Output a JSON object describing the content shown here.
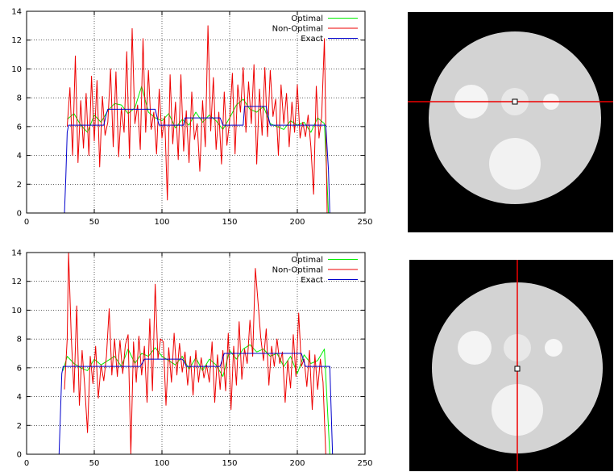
{
  "chart_data": [
    {
      "type": "line",
      "title": "",
      "xlabel": "",
      "ylabel": "",
      "xlim": [
        0,
        250
      ],
      "ylim": [
        0,
        14
      ],
      "x_ticks": [
        0,
        50,
        100,
        150,
        200,
        250
      ],
      "y_ticks": [
        0,
        2,
        4,
        6,
        8,
        10,
        12,
        14
      ],
      "grid": true,
      "legend": "top-right",
      "series": [
        {
          "name": "Optimal",
          "color": "#00ee00",
          "x": [
            30,
            35,
            40,
            45,
            50,
            55,
            60,
            65,
            70,
            75,
            80,
            85,
            90,
            95,
            100,
            105,
            110,
            115,
            120,
            125,
            130,
            135,
            140,
            145,
            150,
            155,
            160,
            165,
            170,
            175,
            180,
            185,
            190,
            195,
            200,
            205,
            210,
            215,
            220,
            223
          ],
          "y": [
            6.5,
            6.9,
            6.1,
            5.6,
            6.8,
            6.3,
            7.1,
            7.6,
            7.5,
            6.9,
            7.3,
            8.8,
            7.0,
            6.6,
            6.4,
            6.9,
            5.9,
            6.5,
            6.1,
            7.0,
            6.3,
            6.8,
            6.4,
            5.8,
            6.6,
            7.5,
            7.9,
            7.2,
            7.0,
            7.4,
            6.2,
            6.0,
            5.8,
            6.4,
            6.1,
            6.3,
            5.6,
            6.6,
            6.2,
            0
          ]
        },
        {
          "name": "Non-Optimal",
          "color": "#ee0000",
          "x": [
            30,
            32,
            34,
            36,
            38,
            40,
            42,
            44,
            46,
            48,
            50,
            52,
            54,
            56,
            58,
            60,
            62,
            64,
            66,
            68,
            70,
            72,
            74,
            76,
            78,
            80,
            82,
            84,
            86,
            88,
            90,
            92,
            94,
            96,
            98,
            100,
            102,
            104,
            106,
            108,
            110,
            112,
            114,
            116,
            118,
            120,
            122,
            124,
            126,
            128,
            130,
            132,
            134,
            136,
            138,
            140,
            142,
            144,
            146,
            148,
            150,
            152,
            154,
            156,
            158,
            160,
            162,
            164,
            166,
            168,
            170,
            172,
            174,
            176,
            178,
            180,
            182,
            184,
            186,
            188,
            190,
            192,
            194,
            196,
            198,
            200,
            202,
            204,
            206,
            208,
            210,
            212,
            214,
            216,
            218,
            220,
            222,
            224
          ],
          "y": [
            6.0,
            8.7,
            4.0,
            10.9,
            3.5,
            7.8,
            4.5,
            8.3,
            4.0,
            9.5,
            5.0,
            9.2,
            3.2,
            8.1,
            5.4,
            6.3,
            10.0,
            4.6,
            9.8,
            3.9,
            7.3,
            5.6,
            11.2,
            3.8,
            12.8,
            6.2,
            7.5,
            4.4,
            12.1,
            5.6,
            9.9,
            5.8,
            7.0,
            4.1,
            8.6,
            5.2,
            6.7,
            0.9,
            9.6,
            4.8,
            7.7,
            3.7,
            9.6,
            4.3,
            7.1,
            3.5,
            8.4,
            5.1,
            6.2,
            2.9,
            7.8,
            4.6,
            13.0,
            5.7,
            9.4,
            4.4,
            7.0,
            3.4,
            8.4,
            4.7,
            6.4,
            9.7,
            4.1,
            8.9,
            7.0,
            10.1,
            5.6,
            9.1,
            6.2,
            10.3,
            3.4,
            8.6,
            5.4,
            10.1,
            5.3,
            9.9,
            6.7,
            7.9,
            4.0,
            8.9,
            6.2,
            8.3,
            4.6,
            7.7,
            5.6,
            8.9,
            5.2,
            6.3,
            5.3,
            6.8,
            4.6,
            1.3,
            8.8,
            5.2,
            6.7,
            12.1,
            0,
            0
          ]
        },
        {
          "name": "Exact",
          "color": "#0000cc",
          "x": [
            28,
            29,
            30,
            31,
            57,
            59,
            60,
            95,
            97,
            98,
            116,
            117,
            143,
            145,
            160,
            161,
            177,
            179,
            180,
            221,
            223,
            224
          ],
          "y": [
            0,
            2.5,
            5.6,
            6.1,
            6.1,
            6.9,
            7.2,
            7.2,
            6.4,
            6.1,
            6.1,
            6.6,
            6.6,
            6.1,
            6.1,
            7.4,
            7.4,
            6.5,
            6.1,
            6.1,
            3.0,
            0
          ]
        }
      ]
    },
    {
      "type": "line",
      "title": "",
      "xlabel": "",
      "ylabel": "",
      "xlim": [
        0,
        250
      ],
      "ylim": [
        0,
        14
      ],
      "x_ticks": [
        0,
        50,
        100,
        150,
        200,
        250
      ],
      "y_ticks": [
        0,
        2,
        4,
        6,
        8,
        10,
        12,
        14
      ],
      "grid": true,
      "legend": "top-right",
      "series": [
        {
          "name": "Optimal",
          "color": "#00ee00",
          "x": [
            27,
            30,
            35,
            40,
            45,
            50,
            55,
            60,
            65,
            70,
            75,
            80,
            85,
            90,
            95,
            100,
            105,
            110,
            115,
            120,
            125,
            130,
            135,
            140,
            145,
            150,
            155,
            160,
            165,
            170,
            175,
            180,
            185,
            190,
            195,
            200,
            205,
            210,
            215,
            220,
            224
          ],
          "y": [
            5.8,
            6.8,
            6.3,
            6.0,
            5.8,
            6.6,
            6.2,
            6.5,
            6.8,
            6.1,
            7.3,
            6.3,
            7.0,
            6.8,
            7.4,
            6.8,
            6.5,
            6.2,
            6.8,
            5.9,
            6.7,
            5.8,
            6.6,
            6.2,
            5.4,
            7.2,
            6.6,
            7.3,
            7.6,
            7.1,
            7.3,
            6.8,
            7.0,
            6.1,
            6.8,
            5.6,
            6.9,
            6.3,
            6.5,
            7.3,
            0
          ]
        },
        {
          "name": "Non-Optimal",
          "color": "#ee0000",
          "x": [
            28,
            30,
            31,
            33,
            35,
            37,
            39,
            41,
            43,
            45,
            47,
            49,
            51,
            53,
            55,
            57,
            59,
            61,
            63,
            65,
            67,
            69,
            71,
            73,
            75,
            77,
            79,
            81,
            83,
            85,
            87,
            89,
            91,
            93,
            95,
            97,
            99,
            101,
            103,
            105,
            107,
            109,
            111,
            113,
            115,
            117,
            119,
            121,
            123,
            125,
            127,
            129,
            131,
            133,
            135,
            137,
            139,
            141,
            143,
            145,
            147,
            149,
            151,
            153,
            155,
            157,
            159,
            161,
            163,
            165,
            167,
            169,
            171,
            173,
            175,
            177,
            179,
            181,
            183,
            185,
            187,
            189,
            191,
            193,
            195,
            197,
            199,
            201,
            203,
            205,
            207,
            209,
            211,
            213,
            215,
            217,
            219,
            221,
            223,
            224
          ],
          "y": [
            4.5,
            8.0,
            14.0,
            8.2,
            4.3,
            10.3,
            3.4,
            7.2,
            4.7,
            1.5,
            6.8,
            4.9,
            7.5,
            3.9,
            6.2,
            5.1,
            6.8,
            10.1,
            5.5,
            8.0,
            5.4,
            7.9,
            5.6,
            7.6,
            8.3,
            0,
            7.8,
            5.0,
            8.2,
            5.5,
            7.5,
            3.6,
            9.4,
            4.4,
            11.8,
            6.6,
            8.0,
            7.8,
            3.4,
            7.4,
            5.0,
            8.4,
            5.5,
            7.7,
            5.7,
            7.1,
            4.8,
            6.8,
            4.1,
            7.2,
            5.0,
            6.7,
            5.3,
            6.2,
            5.0,
            7.8,
            3.6,
            6.9,
            4.5,
            7.2,
            4.4,
            8.4,
            3.1,
            7.5,
            4.8,
            9.2,
            5.2,
            7.3,
            6.3,
            9.3,
            6.8,
            12.9,
            10.5,
            8.1,
            6.5,
            8.7,
            4.8,
            7.5,
            6.1,
            8.0,
            6.3,
            7.1,
            3.6,
            6.5,
            4.6,
            8.3,
            5.4,
            9.8,
            6.1,
            6.6,
            4.7,
            7.2,
            3.1,
            6.9,
            4.5,
            6.6,
            5.0,
            0,
            0,
            0
          ]
        },
        {
          "name": "Exact",
          "color": "#0000cc",
          "x": [
            24,
            26,
            27,
            84,
            86,
            87,
            115,
            117,
            118,
            143,
            145,
            146,
            203,
            205,
            206,
            224,
            226
          ],
          "y": [
            0,
            5.6,
            6.1,
            6.1,
            6.4,
            6.6,
            6.6,
            6.3,
            6.1,
            6.1,
            6.7,
            7.0,
            7.0,
            6.4,
            6.1,
            6.1,
            0
          ]
        }
      ]
    }
  ],
  "legend_labels": [
    "Optimal",
    "Non-Optimal",
    "Exact"
  ],
  "images": [
    {
      "name": "phantom-top",
      "background": "#000000",
      "disk_color": "#d3d3d3",
      "insert_color": "#f2f2f2",
      "crosshair": "horizontal",
      "crosshair_color": "#ee0000"
    },
    {
      "name": "phantom-bottom",
      "background": "#000000",
      "disk_color": "#d3d3d3",
      "insert_color": "#f2f2f2",
      "crosshair": "vertical",
      "crosshair_color": "#ee0000"
    }
  ]
}
